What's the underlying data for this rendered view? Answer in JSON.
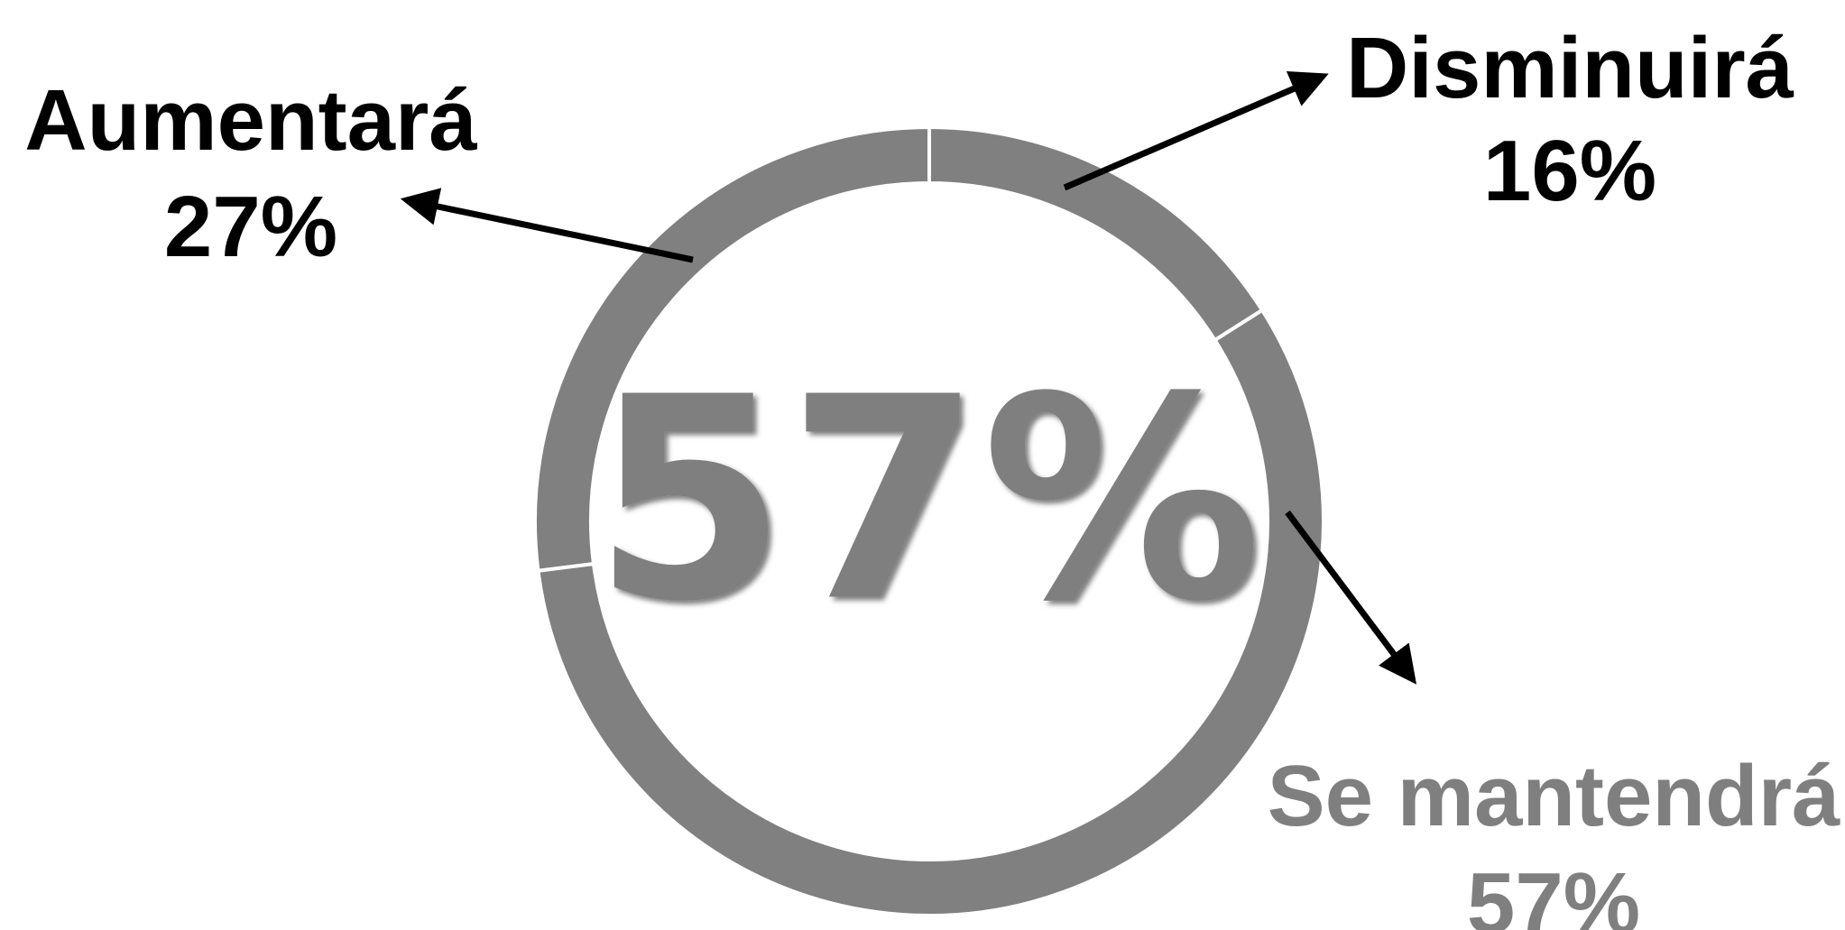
{
  "chart_data": {
    "type": "pie",
    "variant": "donut",
    "categories": [
      "Disminuirá",
      "Se mantendrá",
      "Aumentará"
    ],
    "values": [
      16,
      57,
      27
    ],
    "value_labels": [
      "16%",
      "57%",
      "27%"
    ],
    "center_label": "57%",
    "colors": {
      "ring": "#808080",
      "separator": "#ffffff",
      "label_dark": "#000000",
      "label_gray": "#7f7f7f",
      "center": "#7f7f7f",
      "arrow": "#000000"
    }
  }
}
